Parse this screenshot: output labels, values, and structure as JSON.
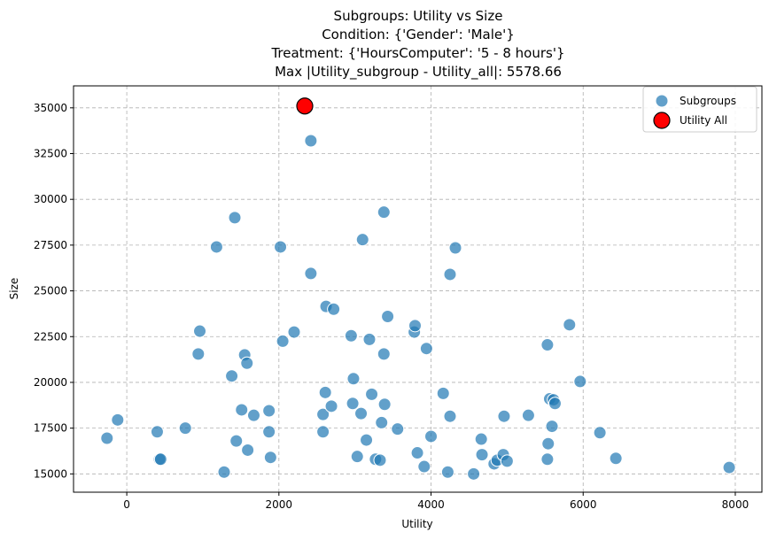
{
  "chart_data": {
    "type": "scatter",
    "title_lines": [
      "Subgroups: Utility vs Size",
      "Condition: {'Gender': 'Male'}",
      "Treatment: {'HoursComputer': '5 - 8 hours'}",
      "Max |Utility_subgroup - Utility_all|: 5578.66"
    ],
    "xlabel": "Utility",
    "ylabel": "Size",
    "xlim": [
      -700,
      8350
    ],
    "ylim": [
      14000,
      36200
    ],
    "xticks": [
      0,
      2000,
      4000,
      6000,
      8000
    ],
    "xtick_labels": [
      "0",
      "2000",
      "4000",
      "6000",
      "8000"
    ],
    "yticks": [
      15000,
      17500,
      20000,
      22500,
      25000,
      27500,
      30000,
      32500,
      35000
    ],
    "ytick_labels": [
      "15000",
      "17500",
      "20000",
      "22500",
      "25000",
      "27500",
      "30000",
      "32500",
      "35000"
    ],
    "grid": true,
    "legend": {
      "position": "top-right",
      "entries": [
        "Subgroups",
        "Utility All"
      ]
    },
    "colors": {
      "subgroups": "#1f77b4",
      "utility_all": "#ff0000"
    },
    "series": [
      {
        "name": "Subgroups",
        "points": [
          [
            -260,
            16950
          ],
          [
            -120,
            17950
          ],
          [
            400,
            17300
          ],
          [
            430,
            15800
          ],
          [
            445,
            15800
          ],
          [
            770,
            17500
          ],
          [
            940,
            21550
          ],
          [
            960,
            22800
          ],
          [
            1280,
            15100
          ],
          [
            1380,
            20350
          ],
          [
            1420,
            29000
          ],
          [
            1440,
            16800
          ],
          [
            1180,
            27400
          ],
          [
            1510,
            18500
          ],
          [
            1550,
            21500
          ],
          [
            1580,
            21050
          ],
          [
            1590,
            16300
          ],
          [
            1670,
            18200
          ],
          [
            1870,
            17300
          ],
          [
            1870,
            18450
          ],
          [
            1890,
            15900
          ],
          [
            2020,
            27400
          ],
          [
            2050,
            22250
          ],
          [
            2200,
            22750
          ],
          [
            2420,
            33200
          ],
          [
            2420,
            25950
          ],
          [
            2580,
            17300
          ],
          [
            2580,
            18250
          ],
          [
            2610,
            19450
          ],
          [
            2620,
            24150
          ],
          [
            2690,
            18700
          ],
          [
            2720,
            24000
          ],
          [
            2950,
            22550
          ],
          [
            2970,
            18850
          ],
          [
            2980,
            20200
          ],
          [
            3030,
            15950
          ],
          [
            3080,
            18300
          ],
          [
            3100,
            27800
          ],
          [
            3150,
            16850
          ],
          [
            3190,
            22350
          ],
          [
            3220,
            19350
          ],
          [
            3270,
            15800
          ],
          [
            3330,
            15750
          ],
          [
            3350,
            17800
          ],
          [
            3380,
            21550
          ],
          [
            3380,
            29300
          ],
          [
            3390,
            18800
          ],
          [
            3430,
            23600
          ],
          [
            3560,
            17450
          ],
          [
            3780,
            22750
          ],
          [
            3790,
            23100
          ],
          [
            3820,
            16150
          ],
          [
            3910,
            15400
          ],
          [
            3940,
            21850
          ],
          [
            4000,
            17050
          ],
          [
            4160,
            19400
          ],
          [
            4220,
            15100
          ],
          [
            4250,
            18150
          ],
          [
            4250,
            25900
          ],
          [
            4320,
            27350
          ],
          [
            4560,
            15000
          ],
          [
            4660,
            16900
          ],
          [
            4670,
            16050
          ],
          [
            4830,
            15550
          ],
          [
            4870,
            15750
          ],
          [
            4950,
            16050
          ],
          [
            4960,
            18150
          ],
          [
            5000,
            15700
          ],
          [
            5280,
            18200
          ],
          [
            5530,
            15800
          ],
          [
            5540,
            16650
          ],
          [
            5530,
            22050
          ],
          [
            5560,
            19100
          ],
          [
            5590,
            17600
          ],
          [
            5610,
            19050
          ],
          [
            5630,
            18850
          ],
          [
            5820,
            23150
          ],
          [
            5960,
            20050
          ],
          [
            6220,
            17250
          ],
          [
            6430,
            15850
          ],
          [
            7920,
            15350
          ]
        ]
      },
      {
        "name": "Utility All",
        "points": [
          [
            2340,
            35100
          ]
        ]
      }
    ]
  }
}
